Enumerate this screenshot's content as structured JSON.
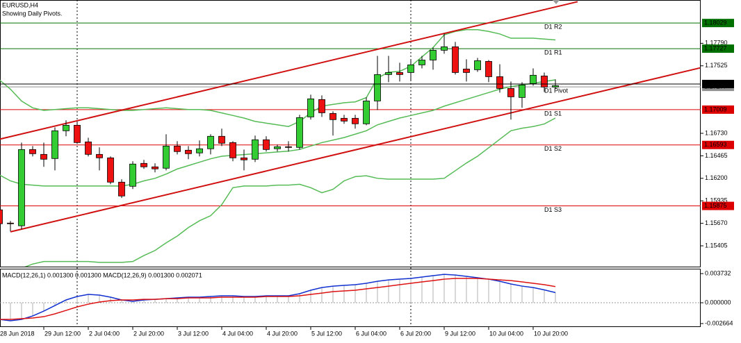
{
  "chart_data": [
    {
      "type": "candlestick",
      "title": "EURUSD,H4",
      "subtitle": "Showing Daily Pivots.",
      "categories": [
        "28 Jun 2018",
        null,
        null,
        null,
        "29 Jun 12:00",
        null,
        null,
        null,
        "2 Jul 04:00",
        null,
        null,
        null,
        "2 Jul 20:00",
        null,
        null,
        null,
        "3 Jul 12:00",
        null,
        null,
        null,
        "4 Jul 04:00",
        null,
        null,
        null,
        "4 Jul 20:00",
        null,
        null,
        null,
        "5 Jul 12:00",
        null,
        null,
        null,
        "6 Jul 04:00",
        null,
        null,
        null,
        "6 Jul 20:00",
        null,
        null,
        null,
        "9 Jul 12:00",
        null,
        null,
        null,
        "10 Jul 04:00",
        null,
        null,
        null,
        "10 Jul 20:00",
        null,
        null
      ],
      "open": [
        1.15829,
        1.15673,
        1.15641,
        1.16539,
        1.16482,
        1.16433,
        1.1676,
        1.16825,
        1.16629,
        1.16482,
        1.16441,
        1.16155,
        1.16106,
        1.16376,
        1.16335,
        1.16319,
        1.1658,
        1.16531,
        1.16499,
        1.16548,
        1.16695,
        1.16621,
        1.16441,
        1.16425,
        1.16654,
        1.16548,
        1.16572,
        1.16564,
        1.16923,
        1.17128,
        1.16964,
        1.16907,
        1.16907,
        1.16842,
        1.17111,
        1.17422,
        1.17446,
        1.17446,
        1.17536,
        1.17593,
        1.17708,
        1.17749,
        1.17487,
        1.17479,
        1.17577,
        1.17397,
        1.17258,
        1.17152,
        1.17316,
        1.17405,
        1.17275
      ],
      "high": [
        1.15861,
        1.15698,
        1.16621,
        1.1658,
        1.16621,
        1.16801,
        1.16883,
        1.16866,
        1.16678,
        1.16564,
        1.16458,
        1.16188,
        1.16401,
        1.16417,
        1.16376,
        1.16719,
        1.16637,
        1.1658,
        1.16646,
        1.16719,
        1.16785,
        1.16637,
        1.16539,
        1.16703,
        1.16695,
        1.16597,
        1.16637,
        1.16948,
        1.17185,
        1.17177,
        1.16989,
        1.16948,
        1.16948,
        1.17152,
        1.17642,
        1.17642,
        1.17561,
        1.17602,
        1.17642,
        1.1774,
        1.17904,
        1.17806,
        1.17602,
        1.17618,
        1.17593,
        1.17544,
        1.1734,
        1.17332,
        1.17495,
        1.17446,
        1.17365
      ],
      "low": [
        1.15641,
        1.15575,
        1.156,
        1.16458,
        1.16335,
        1.16294,
        1.16695,
        1.16605,
        1.16458,
        1.16294,
        1.16131,
        1.15968,
        1.16074,
        1.16311,
        1.1627,
        1.16294,
        1.16482,
        1.16425,
        1.16458,
        1.16482,
        1.1658,
        1.16401,
        1.16294,
        1.16392,
        1.16515,
        1.16515,
        1.16515,
        1.16539,
        1.16891,
        1.16923,
        1.16703,
        1.16842,
        1.16785,
        1.16825,
        1.17005,
        1.17332,
        1.1734,
        1.17356,
        1.17495,
        1.17479,
        1.17667,
        1.17422,
        1.1734,
        1.17454,
        1.17332,
        1.17209,
        1.16891,
        1.1703,
        1.17291,
        1.17218,
        1.1725
      ],
      "close": [
        1.15665,
        1.15665,
        1.16539,
        1.1649,
        1.16425,
        1.1676,
        1.16825,
        1.16621,
        1.16482,
        1.16441,
        1.16155,
        1.15992,
        1.16368,
        1.16335,
        1.16311,
        1.1658,
        1.16515,
        1.1649,
        1.16548,
        1.16695,
        1.16613,
        1.16441,
        1.16417,
        1.16654,
        1.16539,
        1.16572,
        1.16564,
        1.16915,
        1.17136,
        1.16972,
        1.16891,
        1.16874,
        1.16842,
        1.17111,
        1.17422,
        1.17446,
        1.17422,
        1.17536,
        1.17593,
        1.17708,
        1.17749,
        1.17446,
        1.17446,
        1.17585,
        1.17397,
        1.17258,
        1.1716,
        1.17299,
        1.17414,
        1.17275,
        1.17291
      ],
      "up_color": "#33cc33",
      "down_color": "#ee1111",
      "bands": [
        {
          "color": "#55bb55",
          "values": [
            1.1736,
            1.1725,
            1.1711,
            1.1703,
            1.17,
            1.1701,
            1.1702,
            1.1703,
            1.1703,
            1.1702,
            1.1701,
            1.17,
            1.17,
            1.1701,
            1.1702,
            1.1703,
            1.1702,
            1.1701,
            1.1701,
            1.17,
            1.1697,
            1.1694,
            1.1691,
            1.1687,
            1.1685,
            1.1683,
            1.1681,
            1.1687,
            1.1697,
            1.1705,
            1.1707,
            1.1709,
            1.171,
            1.1715,
            1.1738,
            1.1745,
            1.1746,
            1.1752,
            1.1763,
            1.1774,
            1.1789,
            1.1793,
            1.1795,
            1.1795,
            1.1793,
            1.179,
            1.1785,
            1.1785,
            1.1785,
            1.1784,
            1.1783
          ]
        },
        {
          "color": "#55bb55",
          "values": [
            1.1624,
            1.1617,
            1.1613,
            1.1612,
            1.1611,
            1.1611,
            1.1611,
            1.1611,
            1.1611,
            1.1611,
            1.1611,
            1.1611,
            1.1613,
            1.1617,
            1.162,
            1.1625,
            1.1631,
            1.1635,
            1.1639,
            1.1643,
            1.1646,
            1.1647,
            1.1648,
            1.1649,
            1.165,
            1.1651,
            1.1652,
            1.1654,
            1.1658,
            1.1662,
            1.1665,
            1.1668,
            1.1672,
            1.1676,
            1.1683,
            1.1687,
            1.1691,
            1.1694,
            1.1697,
            1.17,
            1.1705,
            1.1709,
            1.1713,
            1.1717,
            1.1721,
            1.1725,
            1.1728,
            1.173,
            1.1732,
            1.1734,
            1.1736
          ]
        },
        {
          "color": "#55bb55",
          "values": [
            1.1509,
            1.1511,
            1.1514,
            1.1519,
            1.1522,
            1.1522,
            1.1522,
            1.1522,
            1.1522,
            1.1521,
            1.1521,
            1.1521,
            1.1522,
            1.1529,
            1.1535,
            1.1544,
            1.1552,
            1.1562,
            1.157,
            1.1576,
            1.1589,
            1.1609,
            1.1611,
            1.1611,
            1.1611,
            1.1612,
            1.1612,
            1.1613,
            1.1609,
            1.1603,
            1.1607,
            1.1617,
            1.1622,
            1.1623,
            1.162,
            1.1619,
            1.1619,
            1.1619,
            1.1619,
            1.1619,
            1.162,
            1.1629,
            1.1638,
            1.1646,
            1.1656,
            1.1666,
            1.1676,
            1.1679,
            1.1681,
            1.1684,
            1.1691
          ]
        }
      ],
      "trendlines": [
        {
          "color": "#d01010",
          "points": [
            [
              0,
              1.1666
            ],
            [
              52,
              1.1828
            ]
          ]
        },
        {
          "color": "#d01010",
          "points": [
            [
              1,
              1.1557
            ],
            [
              63,
              1.175
            ]
          ]
        }
      ],
      "levels": [
        {
          "name": "D1 R2",
          "value": 1.18029,
          "color": "#007000"
        },
        {
          "name": "D1 R1",
          "value": 1.17727,
          "color": "#007000"
        },
        {
          "name": "D1 Pivot",
          "value": 1.17277,
          "color": "#909090"
        },
        {
          "name": "D1 S1",
          "value": 1.17009,
          "color": "#dd0000"
        },
        {
          "name": "D1 S2",
          "value": 1.16593,
          "color": "#dd0000"
        },
        {
          "name": "D1 S3",
          "value": 1.15875,
          "color": "#dd0000"
        }
      ],
      "current": {
        "value": 1.17311,
        "color": "#000000"
      },
      "ylim": [
        1.1516,
        1.183
      ],
      "yticks": [
        {
          "value": 1.1779,
          "label": "1.17790"
        },
        {
          "value": 1.17525,
          "label": "1.17525"
        },
        {
          "value": 1.1673,
          "label": "1.16730"
        },
        {
          "value": 1.16465,
          "label": "1.16465"
        },
        {
          "value": 1.162,
          "label": "1.16200"
        },
        {
          "value": 1.15935,
          "label": "1.15935"
        },
        {
          "value": 1.1567,
          "label": "1.15670"
        },
        {
          "value": 1.15405,
          "label": "1.15405"
        }
      ]
    },
    {
      "type": "macd",
      "title": "MACD(12,26,1) 0.001300 0.001300 MACD(12,26,9) 0.001300 0.002071",
      "histogram_color": "#b0b0b0",
      "series": [
        {
          "color": "#1030d0",
          "values": [
            -0.00213,
            -0.00231,
            -0.00213,
            -0.00169,
            -0.00107,
            -0.00036,
            0.00036,
            0.0008,
            0.00107,
            0.00098,
            0.00071,
            0.00036,
            0.00018,
            0.00036,
            0.00044,
            0.00053,
            0.00062,
            0.00071,
            0.00071,
            0.0008,
            0.00089,
            0.00089,
            0.0008,
            0.0008,
            0.00089,
            0.00089,
            0.00089,
            0.00116,
            0.0016,
            0.00195,
            0.00213,
            0.00222,
            0.00231,
            0.00249,
            0.00275,
            0.00293,
            0.00302,
            0.00311,
            0.00329,
            0.00347,
            0.00364,
            0.00355,
            0.00338,
            0.0032,
            0.00302,
            0.00275,
            0.0024,
            0.00213,
            0.00195,
            0.00165,
            0.0013
          ]
        },
        {
          "color": "#dd1111",
          "values": [
            -0.00213,
            -0.00213,
            -0.00204,
            -0.00195,
            -0.00178,
            -0.00142,
            -0.00098,
            -0.00053,
            -0.00018,
            9e-05,
            0.00027,
            0.00036,
            0.00036,
            0.00044,
            0.00044,
            0.00053,
            0.00053,
            0.00062,
            0.00062,
            0.00062,
            0.00071,
            0.00071,
            0.00071,
            0.00071,
            0.0008,
            0.0008,
            0.0008,
            0.00089,
            0.00107,
            0.00124,
            0.00142,
            0.00151,
            0.0016,
            0.00178,
            0.00195,
            0.00213,
            0.00231,
            0.00249,
            0.00267,
            0.00284,
            0.00302,
            0.00311,
            0.00311,
            0.00311,
            0.00302,
            0.00293,
            0.00284,
            0.00267,
            0.00249,
            0.00231,
            0.002071
          ]
        }
      ],
      "ylim": [
        -0.00302,
        0.00427
      ],
      "yticks": [
        0.003732,
        {
          "value": 0,
          "label": "0.000000"
        },
        -0.002664
      ]
    }
  ]
}
